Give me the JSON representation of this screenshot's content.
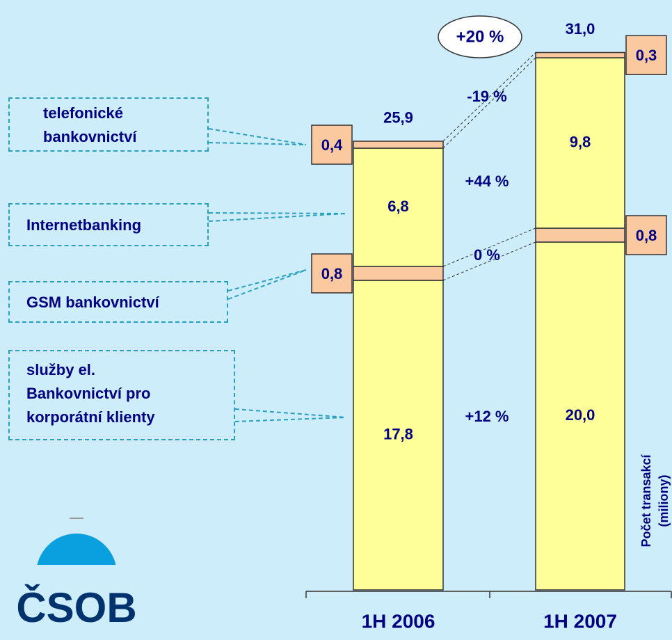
{
  "chart_data": {
    "type": "stacked_bar",
    "categories": [
      "1H 2006",
      "1H 2007"
    ],
    "series": [
      {
        "name": "služby el.\nBankovnictví pro\nkorporátní klienty",
        "color": "#ffff99",
        "values": [
          17.8,
          20.0
        ],
        "value_labels": [
          "17,8",
          "20,0"
        ]
      },
      {
        "name": "GSM bankovnictví",
        "color": "#fbc99f",
        "values": [
          0.8,
          0.8
        ],
        "value_labels": [
          "0,8",
          "0,8"
        ]
      },
      {
        "name": "Internetbanking",
        "color": "#ffff99",
        "values": [
          6.8,
          9.8
        ],
        "value_labels": [
          "6,8",
          "9,8"
        ]
      },
      {
        "name": "telefonické\nbankovnictví",
        "color": "#fbc99f",
        "values": [
          0.4,
          0.3
        ],
        "value_labels": [
          "0,4",
          "0,3"
        ]
      }
    ],
    "totals": [
      25.9,
      31.0
    ],
    "total_labels": [
      "25,9",
      "31,0"
    ],
    "changes": [
      "+12 %",
      "0 %",
      "+44 %",
      "-19 %"
    ],
    "total_change": "+20 %",
    "y_label": "Počet transakcí",
    "y_label_unit": "(miliony)"
  },
  "logo": "ČSOB"
}
